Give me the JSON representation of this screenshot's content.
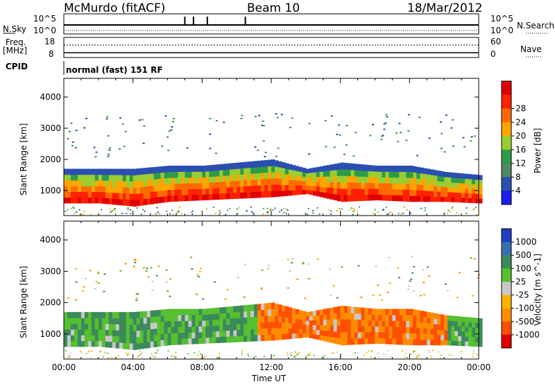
{
  "header": {
    "station": "McMurdo (fitACF)",
    "beam": "Beam 10",
    "date": "18/Mar/2012"
  },
  "noise_panel": {
    "left_label": "N.Sky",
    "left_ticks": [
      "10^5",
      "10^0"
    ],
    "right_ticks": [
      "10^5",
      "10^0"
    ],
    "right_label": "N.Search"
  },
  "freq_panel": {
    "left_label_1": "Freq.",
    "left_label_2": "[MHz]",
    "left_ticks": [
      "18",
      "8"
    ],
    "right_ticks": [
      "60",
      "0"
    ],
    "right_label": "Nave"
  },
  "cpid": {
    "label": "CPID",
    "value": "normal (fast) 151 RF"
  },
  "colors": {
    "power_scale": [
      "#1c1cf0",
      "#2b4fb0",
      "#4e8a62",
      "#2f9b48",
      "#9acd32",
      "#ffa500",
      "#ff6a00",
      "#ff2000",
      "#e00000"
    ],
    "velocity_scale": [
      "#2040c0",
      "#3a6fb0",
      "#3c8a5c",
      "#55c030",
      "#c8c8c8",
      "#ffb300",
      "#ff8c00",
      "#ff5000",
      "#e00000"
    ]
  },
  "chart_data": [
    {
      "type": "heatmap",
      "title": "",
      "xlabel": "",
      "ylabel": "Slant Range [km]",
      "x_ticks": [
        "00:00",
        "04:00",
        "08:00",
        "12:00",
        "16:00",
        "20:00",
        "00:00"
      ],
      "y_ticks": [
        1000,
        2000,
        3000,
        4000
      ],
      "ylim": [
        200,
        4600
      ],
      "colorbar": {
        "label": "Power [dB]",
        "ticks": [
          4,
          8,
          12,
          16,
          20,
          24,
          28
        ]
      },
      "echo_band": {
        "x_hours": [
          0,
          2,
          4,
          6,
          8,
          10,
          12,
          14,
          16,
          18,
          20,
          22,
          24
        ],
        "lower_km": [
          600,
          600,
          500,
          650,
          700,
          750,
          800,
          900,
          650,
          700,
          650,
          650,
          600
        ],
        "upper_km": [
          1700,
          1700,
          1700,
          1800,
          1800,
          1900,
          2000,
          1700,
          1900,
          1800,
          1800,
          1600,
          1500
        ]
      }
    },
    {
      "type": "heatmap",
      "title": "",
      "xlabel": "Time UT",
      "ylabel": "Slant Range [km]",
      "x_ticks": [
        "00:00",
        "04:00",
        "08:00",
        "12:00",
        "16:00",
        "20:00",
        "00:00"
      ],
      "y_ticks": [
        1000,
        2000,
        3000,
        4000
      ],
      "ylim": [
        200,
        4600
      ],
      "colorbar": {
        "label": "Velocity [m s^-1]",
        "ticks": [
          1000,
          500,
          100,
          25,
          -25,
          -100,
          -500,
          -1000
        ]
      },
      "echo_band": {
        "x_hours": [
          0,
          2,
          4,
          6,
          8,
          10,
          12,
          14,
          16,
          18,
          20,
          22,
          24
        ],
        "lower_km": [
          600,
          600,
          500,
          650,
          700,
          750,
          800,
          900,
          650,
          700,
          650,
          650,
          600
        ],
        "upper_km": [
          1700,
          1700,
          1700,
          1800,
          1800,
          1900,
          2000,
          1700,
          1900,
          1800,
          1800,
          1600,
          1500
        ]
      }
    }
  ]
}
